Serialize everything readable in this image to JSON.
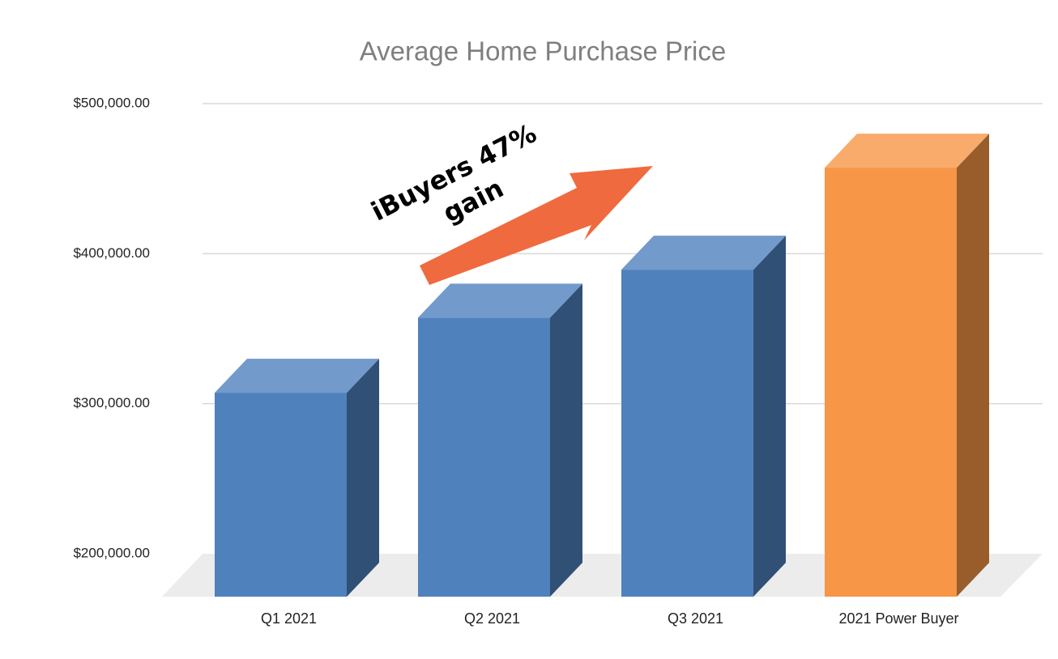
{
  "chart_data": {
    "type": "bar3d",
    "title": "Average Home Purchase Price",
    "categories": [
      "Q1 2021",
      "Q2 2021",
      "Q3 2021",
      "2021 Power Buyer"
    ],
    "values": [
      330000,
      380000,
      412000,
      480000
    ],
    "colors": [
      "#4f81bd",
      "#4f81bd",
      "#4f81bd",
      "#f79646"
    ],
    "ylim": [
      200000,
      500000
    ],
    "yticks": [
      {
        "value": 200000,
        "label": "$200,000.00"
      },
      {
        "value": 300000,
        "label": "$300,000.00"
      },
      {
        "value": 400000,
        "label": "$400,000.00"
      },
      {
        "value": 500000,
        "label": "$500,000.00"
      }
    ],
    "grid": true,
    "annotation_lines": [
      "iBuyers 47%",
      "gain"
    ]
  }
}
